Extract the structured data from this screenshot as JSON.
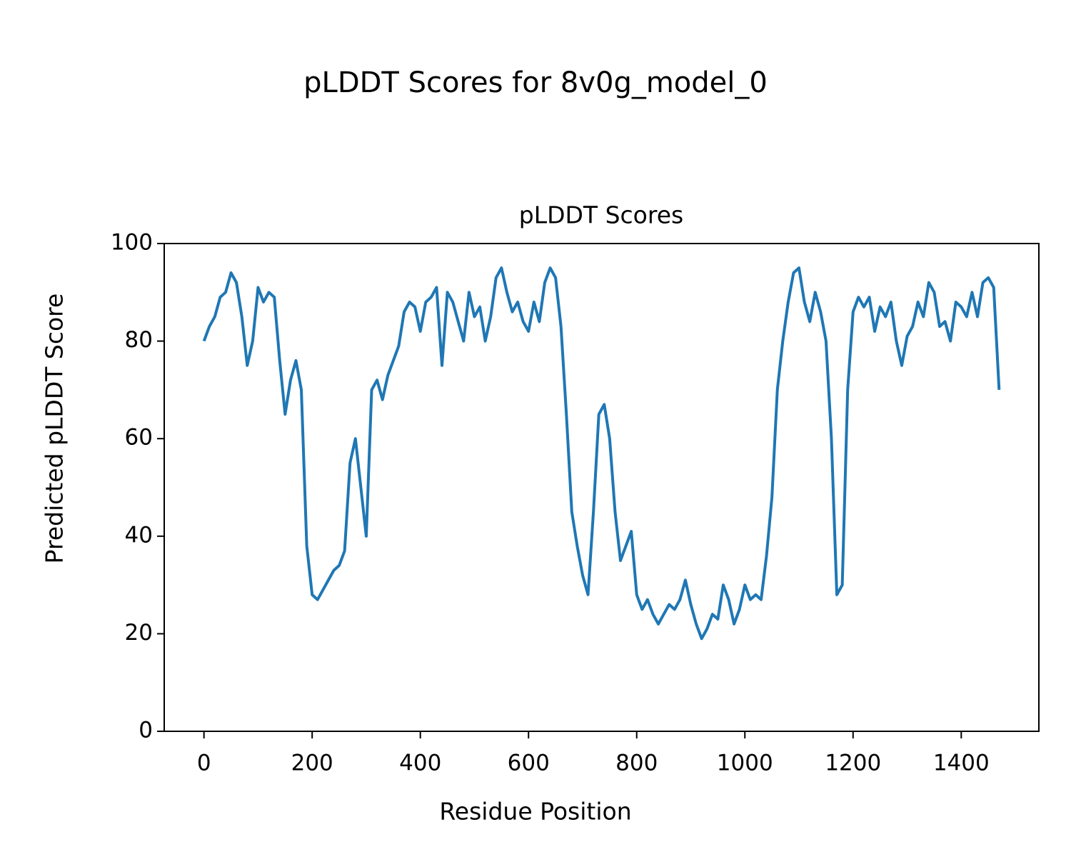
{
  "chart_data": {
    "type": "line",
    "title": "pLDDT Scores for 8v0g_model_0",
    "subtitle": "pLDDT Scores",
    "x_label": "Residue Position",
    "y_label": "Predicted pLDDT Score",
    "x": [
      0,
      10,
      20,
      30,
      40,
      50,
      60,
      70,
      80,
      90,
      100,
      110,
      120,
      130,
      140,
      150,
      160,
      170,
      180,
      190,
      200,
      210,
      220,
      230,
      240,
      250,
      260,
      270,
      280,
      290,
      300,
      310,
      320,
      330,
      340,
      350,
      360,
      370,
      380,
      390,
      400,
      410,
      420,
      430,
      440,
      450,
      460,
      470,
      480,
      490,
      500,
      510,
      520,
      530,
      540,
      550,
      560,
      570,
      580,
      590,
      600,
      610,
      620,
      630,
      640,
      650,
      660,
      670,
      680,
      690,
      700,
      710,
      720,
      730,
      740,
      750,
      760,
      770,
      780,
      790,
      800,
      810,
      820,
      830,
      840,
      850,
      860,
      870,
      880,
      890,
      900,
      910,
      920,
      930,
      940,
      950,
      960,
      970,
      980,
      990,
      1000,
      1010,
      1020,
      1030,
      1040,
      1050,
      1060,
      1070,
      1080,
      1090,
      1100,
      1110,
      1120,
      1130,
      1140,
      1150,
      1160,
      1170,
      1180,
      1190,
      1200,
      1210,
      1220,
      1230,
      1240,
      1250,
      1260,
      1270,
      1280,
      1290,
      1300,
      1310,
      1320,
      1330,
      1340,
      1350,
      1360,
      1370,
      1380,
      1390,
      1400,
      1410,
      1420,
      1430,
      1440,
      1450,
      1460,
      1470
    ],
    "series": [
      {
        "name": "pLDDT",
        "color": "#1f77b4",
        "values": [
          80,
          83,
          85,
          89,
          90,
          94,
          92,
          85,
          75,
          80,
          91,
          88,
          90,
          89,
          76,
          65,
          72,
          76,
          70,
          38,
          28,
          27,
          29,
          31,
          33,
          34,
          37,
          55,
          60,
          50,
          40,
          70,
          72,
          68,
          73,
          76,
          79,
          86,
          88,
          87,
          82,
          88,
          89,
          91,
          75,
          90,
          88,
          84,
          80,
          90,
          85,
          87,
          80,
          85,
          93,
          95,
          90,
          86,
          88,
          84,
          82,
          88,
          84,
          92,
          95,
          93,
          83,
          65,
          45,
          38,
          32,
          28,
          45,
          65,
          67,
          60,
          45,
          35,
          38,
          41,
          28,
          25,
          27,
          24,
          22,
          24,
          26,
          25,
          27,
          31,
          26,
          22,
          19,
          21,
          24,
          23,
          30,
          27,
          22,
          25,
          30,
          27,
          28,
          27,
          36,
          48,
          70,
          80,
          88,
          94,
          95,
          88,
          84,
          90,
          86,
          80,
          60,
          28,
          30,
          70,
          86,
          89,
          87,
          89,
          82,
          87,
          85,
          88,
          80,
          75,
          81,
          83,
          88,
          85,
          92,
          90,
          83,
          84,
          80,
          88,
          87,
          85,
          90,
          85,
          92,
          93,
          91,
          70
        ]
      }
    ],
    "xlim": [
      -73.5,
      1543.5
    ],
    "ylim": [
      0,
      100
    ],
    "xticks": [
      0,
      200,
      400,
      600,
      800,
      1000,
      1200,
      1400
    ],
    "yticks": [
      0,
      20,
      40,
      60,
      80,
      100
    ],
    "grid": false
  }
}
